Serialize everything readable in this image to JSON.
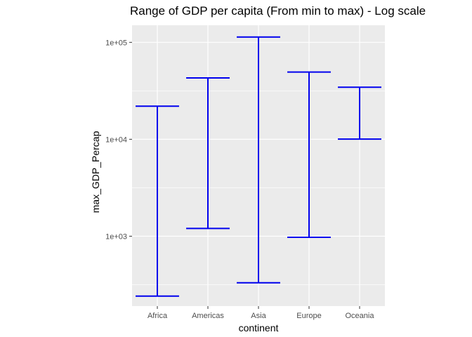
{
  "chart_data": {
    "type": "errorbar",
    "title": "Range of GDP per capita (From min to max) - Log scale",
    "xlabel": "continent",
    "ylabel": "max_GDP_Percap",
    "y_scale": "log10",
    "ylim": [
      190,
      150000
    ],
    "y_ticks": [
      1000,
      10000,
      100000
    ],
    "y_tick_labels": [
      "1e+03",
      "1e+04",
      "1e+05"
    ],
    "categories": [
      "Africa",
      "Americas",
      "Asia",
      "Europe",
      "Oceania"
    ],
    "min": [
      241,
      1202,
      331,
      974,
      10040
    ],
    "max": [
      21951,
      42952,
      113523,
      49357,
      34435
    ],
    "grid": true,
    "legend": "none",
    "colors": {
      "bar": "#0000ee",
      "panel": "#ebebeb",
      "grid": "#ffffff",
      "tick_label": "#4d4d4d"
    }
  }
}
